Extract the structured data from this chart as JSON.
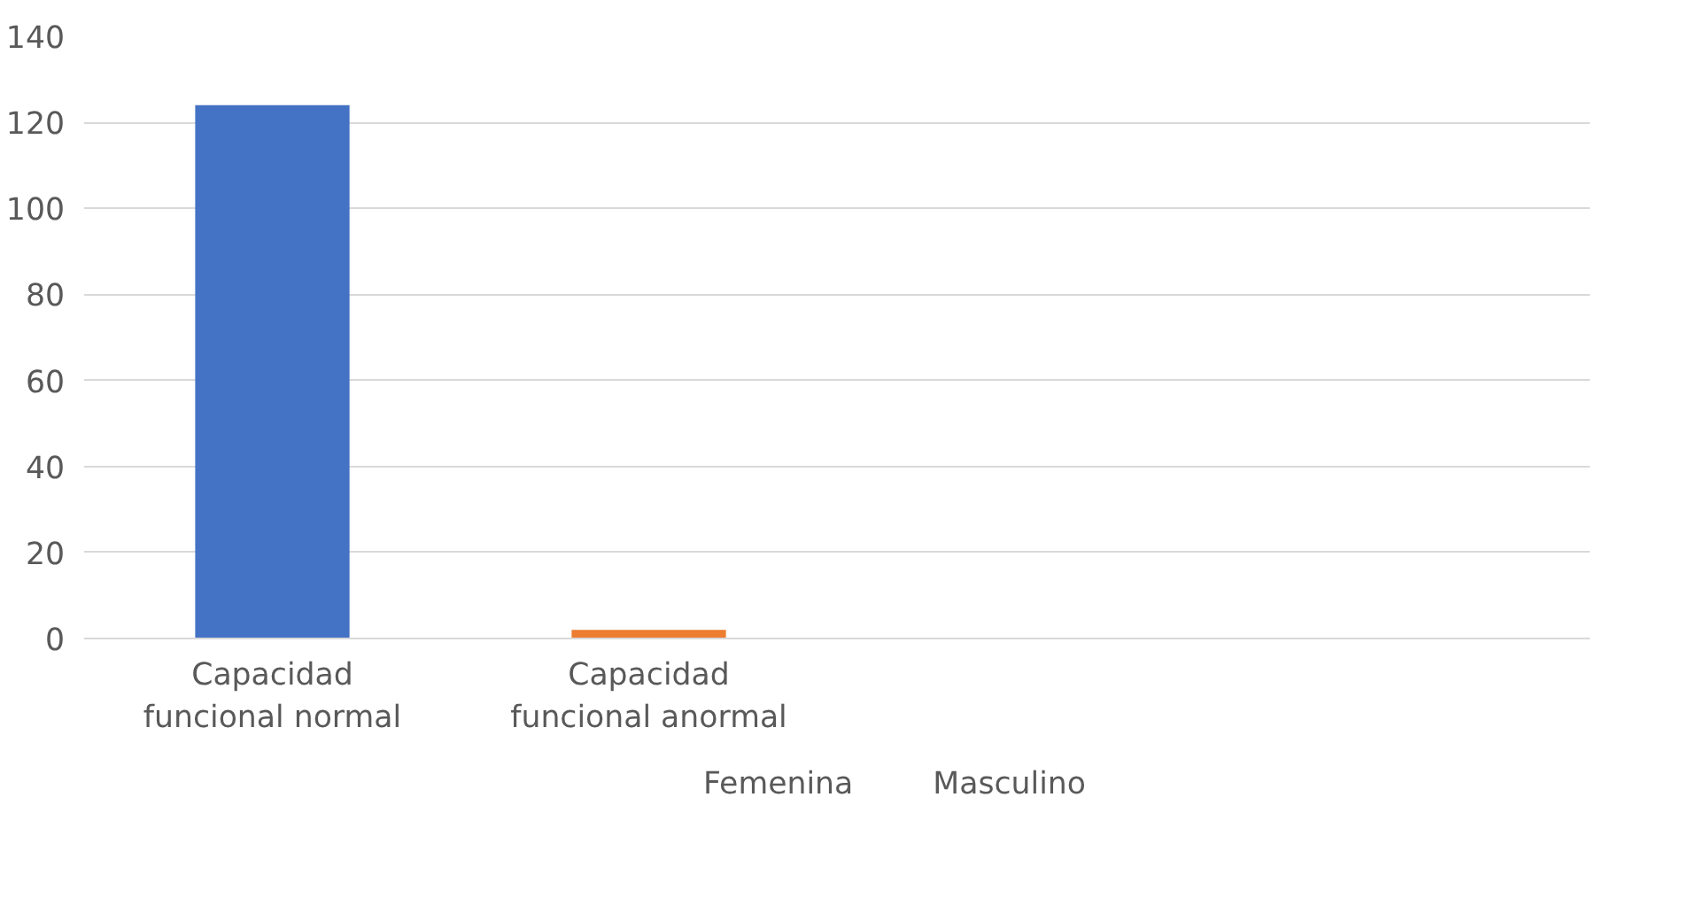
{
  "chart_data": {
    "type": "bar",
    "categories": [
      "Capacidad funcional normal",
      "Capacidad funcional anormal",
      null,
      null
    ],
    "series": [
      {
        "name": "Femenina",
        "color": "#4472c4",
        "values": [
          124,
          null,
          null,
          null
        ]
      },
      {
        "name": "Masculino",
        "color": "#ed7d31",
        "values": [
          null,
          2,
          null,
          null
        ]
      }
    ],
    "ylim": [
      0,
      140
    ],
    "yticks": [
      0,
      20,
      40,
      60,
      80,
      100,
      120,
      140
    ],
    "grid": "y",
    "legend": "bottom"
  }
}
